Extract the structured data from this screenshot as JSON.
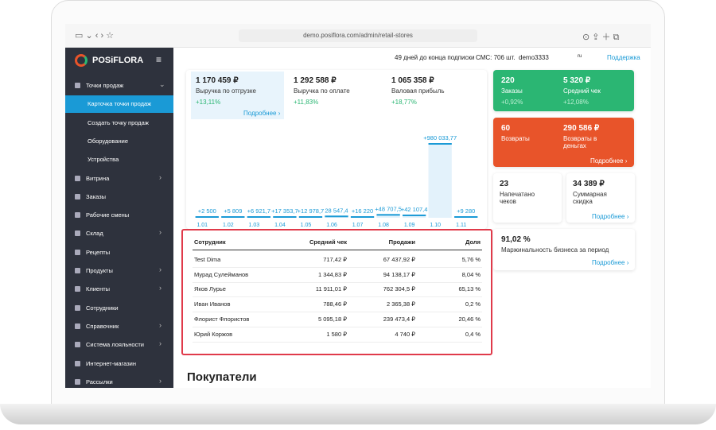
{
  "browser": {
    "url": "demo.posiflora.com/admin/retail-stores"
  },
  "sidebar": {
    "logo": "POSiFLORA",
    "items": [
      {
        "label": "Точки продаж",
        "open": true
      },
      {
        "label": "Карточка точки продаж",
        "sub": true,
        "active": true
      },
      {
        "label": "Создать точку продаж",
        "sub": true
      },
      {
        "label": "Оборудование",
        "sub": true
      },
      {
        "label": "Устройства",
        "sub": true
      },
      {
        "label": "Витрина",
        "arrow": true
      },
      {
        "label": "Заказы"
      },
      {
        "label": "Рабочие смены"
      },
      {
        "label": "Склад",
        "arrow": true
      },
      {
        "label": "Рецепты"
      },
      {
        "label": "Продукты",
        "arrow": true
      },
      {
        "label": "Клиенты",
        "arrow": true
      },
      {
        "label": "Сотрудники"
      },
      {
        "label": "Справочник",
        "arrow": true
      },
      {
        "label": "Система лояльности",
        "arrow": true
      },
      {
        "label": "Интернет-магазин"
      },
      {
        "label": "Рассылки",
        "arrow": true
      }
    ]
  },
  "topbar": {
    "subscription": "49 дней до конца подписки",
    "sms": "СМС: 706 шт.",
    "user": "demo3333",
    "lang": "ru",
    "support": "Поддержка"
  },
  "kpis": [
    {
      "value": "1 170 459 ₽",
      "label": "Выручка по отгрузке",
      "change": "+13,11%",
      "more": "Подробнее ›"
    },
    {
      "value": "1 292 588 ₽",
      "label": "Выручка по оплате",
      "change": "+11,83%"
    },
    {
      "value": "1 065 358 ₽",
      "label": "Валовая прибыль",
      "change": "+18,77%"
    }
  ],
  "chart": {
    "categories": [
      "1.01",
      "1.02",
      "1.03",
      "1.04",
      "1.05",
      "1.06",
      "1.07",
      "1.08",
      "1.09",
      "1.10",
      "1.11"
    ],
    "values": [
      2500,
      5809,
      6921.7,
      17353.7,
      12978.7,
      28547.4,
      16220,
      48707.5,
      42107.4,
      980033.77,
      9280
    ],
    "value_labels": [
      "+2 500",
      "+5 809",
      "+6 921,7",
      "+17 353,7",
      "+12 978,7",
      "28 547,4",
      "+16 220",
      "+48 707,5",
      "+42 107,4",
      "+980 033,77",
      "+9 280"
    ],
    "color": "#1a9ad6"
  },
  "cards": {
    "orders": {
      "value": "220",
      "label": "Заказы",
      "change": "+0,92%"
    },
    "avg": {
      "value": "5 320 ₽",
      "label": "Средний чек",
      "change": "+12,08%"
    },
    "returns": {
      "value": "60",
      "label": "Возвраты"
    },
    "returns_money": {
      "value": "290 586 ₽",
      "label": "Возвраты в деньгах"
    },
    "returns_more": "Подробнее ›",
    "printed": {
      "value": "23",
      "label": "Напечатано чеков"
    },
    "discount": {
      "value": "34 389 ₽",
      "label": "Суммарная скидка"
    },
    "discount_more": "Подробнее ›",
    "margin": {
      "value": "91,02 %",
      "label": "Маржинальность бизнеса за период"
    },
    "margin_more": "Подробнее ›"
  },
  "table": {
    "headers": [
      "Сотрудник",
      "Средний чек",
      "Продажи",
      "Доля"
    ],
    "rows": [
      [
        "Test Dima",
        "717,42 ₽",
        "67 437,92 ₽",
        "5,76 %"
      ],
      [
        "Мурад Сулейманов",
        "1 344,83 ₽",
        "94 138,17 ₽",
        "8,04 %"
      ],
      [
        "Яков Лурье",
        "11 911,01 ₽",
        "762 304,5 ₽",
        "65,13 %"
      ],
      [
        "Иван Иванов",
        "788,46 ₽",
        "2 365,38 ₽",
        "0,2 %"
      ],
      [
        "Флорист Флористов",
        "5 095,18 ₽",
        "239 473,4 ₽",
        "20,46 %"
      ],
      [
        "Юрий Коржов",
        "1 580 ₽",
        "4 740 ₽",
        "0,4 %"
      ]
    ]
  },
  "section_title": "Покупатели"
}
